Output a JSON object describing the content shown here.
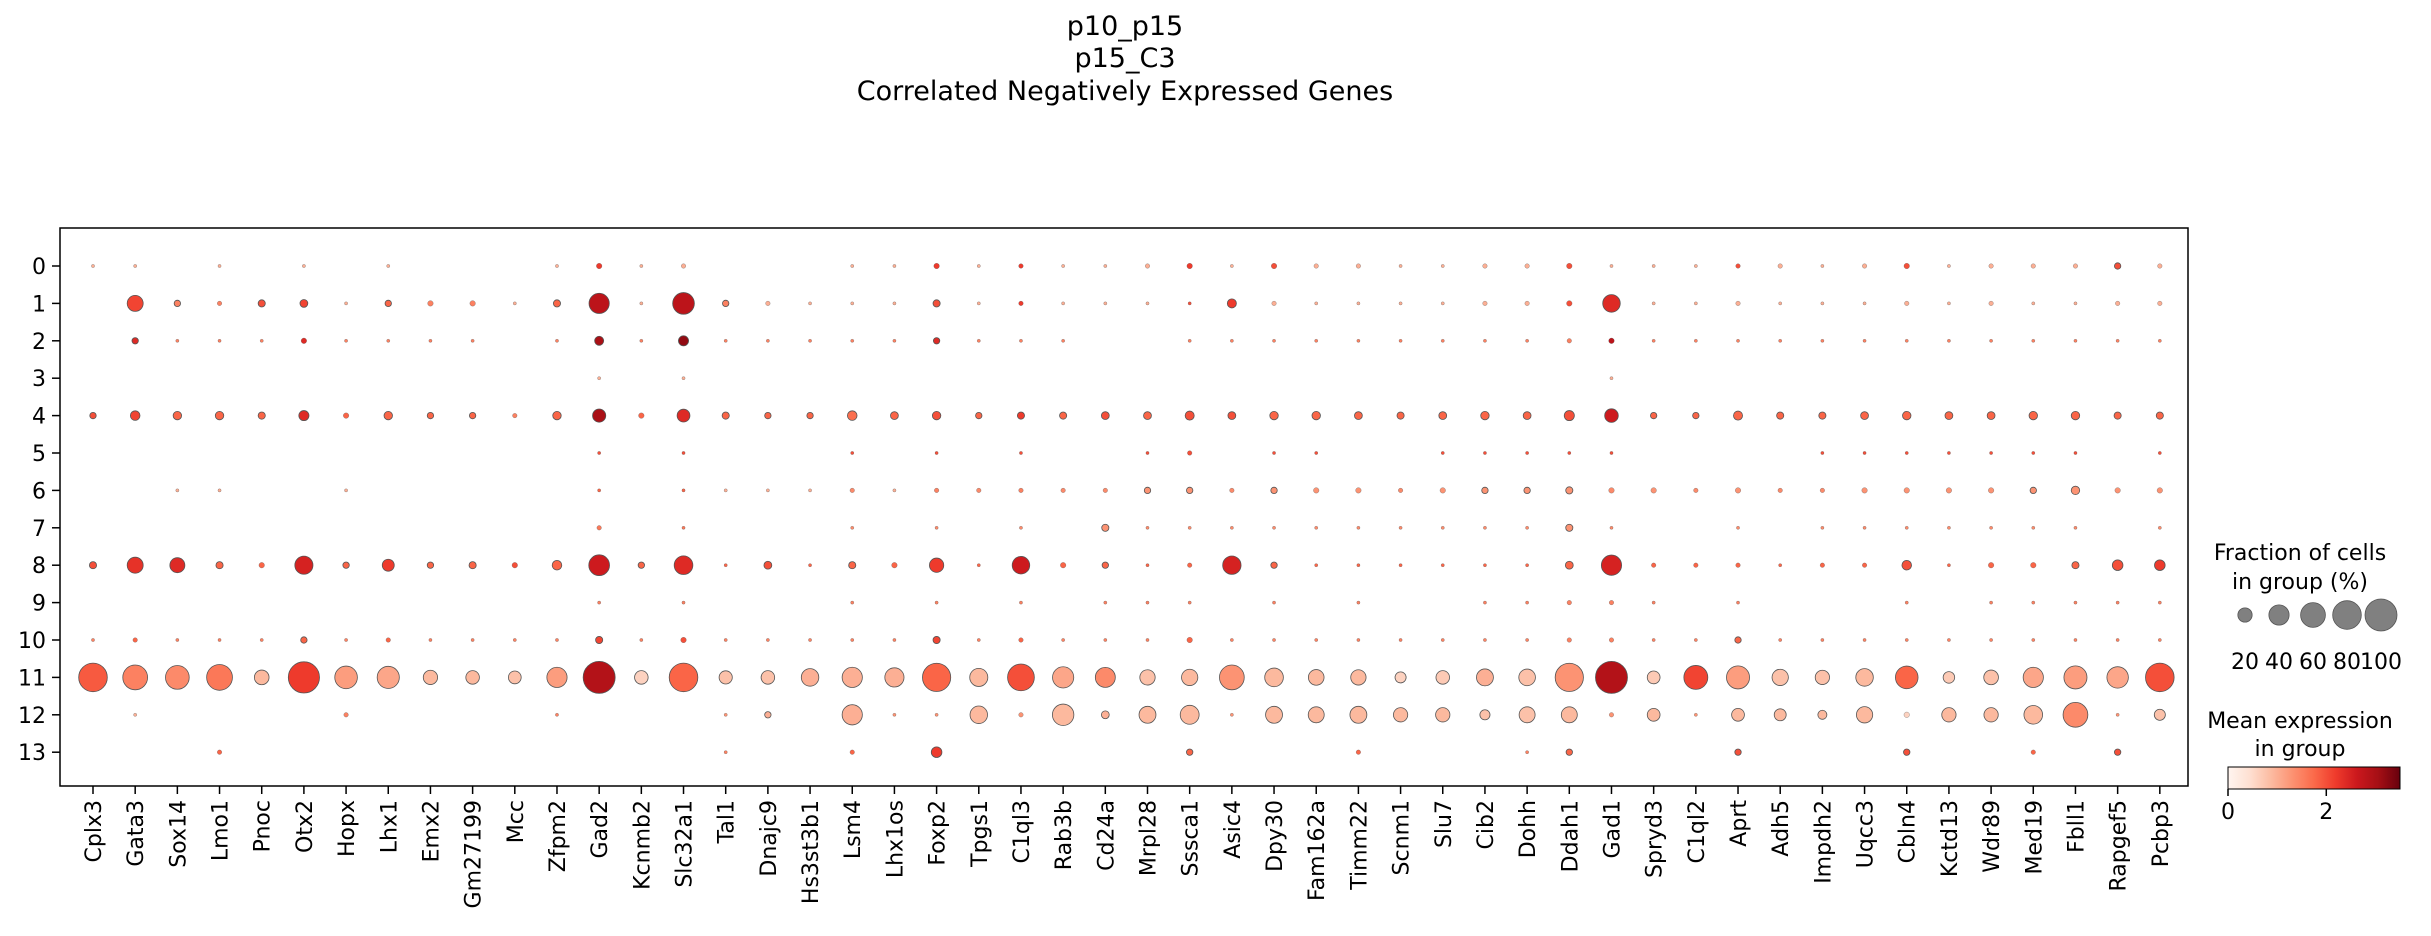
{
  "chart_data": {
    "type": "dotplot",
    "title": [
      "p10_p15",
      "p15_C3",
      "Correlated Negatively Expressed Genes"
    ],
    "genes": [
      "Cplx3",
      "Gata3",
      "Sox14",
      "Lmo1",
      "Pnoc",
      "Otx2",
      "Hopx",
      "Lhx1",
      "Emx2",
      "Gm27199",
      "Mcc",
      "Zfpm2",
      "Gad2",
      "Kcnmb2",
      "Slc32a1",
      "Tal1",
      "Dnajc9",
      "Hs3st3b1",
      "Lsm4",
      "Lhx1os",
      "Foxp2",
      "Tpgs1",
      "C1ql3",
      "Rab3b",
      "Cd24a",
      "Mrpl28",
      "Sssca1",
      "Asic4",
      "Dpy30",
      "Fam162a",
      "Timm22",
      "Scnm1",
      "Slu7",
      "Cib2",
      "Dohh",
      "Ddah1",
      "Gad1",
      "Spryd3",
      "C1ql2",
      "Aprt",
      "Adh5",
      "Impdh2",
      "Uqcc3",
      "Cbln4",
      "Kctd13",
      "Wdr89",
      "Med19",
      "Fbll1",
      "Rapgef5",
      "Pcbp3"
    ],
    "groups": [
      "0",
      "1",
      "2",
      "3",
      "4",
      "5",
      "6",
      "7",
      "8",
      "9",
      "10",
      "11",
      "12",
      "13"
    ],
    "xlabel": "",
    "ylabel": "",
    "fraction_pct": [
      [
        1,
        1,
        0,
        1,
        0,
        1,
        0,
        1,
        0,
        0,
        0,
        1,
        3,
        1,
        2,
        0,
        0,
        0,
        1,
        1,
        3,
        1,
        2,
        1,
        1,
        2,
        3,
        1,
        3,
        2,
        2,
        1,
        1,
        2,
        2,
        3,
        1,
        1,
        1,
        2,
        2,
        1,
        2,
        3,
        1,
        2,
        2,
        2,
        4,
        2
      ],
      [
        0,
        25,
        4,
        2,
        5,
        6,
        1,
        4,
        3,
        3,
        1,
        5,
        40,
        1,
        46,
        4,
        2,
        1,
        1,
        1,
        5,
        1,
        2,
        1,
        1,
        1,
        1,
        8,
        2,
        1,
        1,
        1,
        1,
        2,
        2,
        3,
        30,
        1,
        1,
        2,
        1,
        1,
        1,
        2,
        1,
        2,
        1,
        1,
        2,
        2
      ],
      [
        0,
        4,
        1,
        1,
        1,
        3,
        1,
        1,
        1,
        1,
        0,
        1,
        8,
        1,
        10,
        1,
        1,
        1,
        1,
        1,
        4,
        1,
        1,
        1,
        0,
        0,
        1,
        1,
        1,
        1,
        1,
        1,
        1,
        1,
        1,
        2,
        3,
        1,
        1,
        1,
        1,
        1,
        1,
        1,
        1,
        1,
        1,
        1,
        1,
        1
      ],
      [
        0,
        0,
        0,
        0,
        0,
        0,
        0,
        0,
        0,
        0,
        0,
        0,
        1,
        0,
        1,
        0,
        0,
        0,
        0,
        0,
        0,
        0,
        0,
        0,
        0,
        0,
        0,
        0,
        0,
        0,
        0,
        0,
        0,
        0,
        0,
        0,
        1,
        0,
        0,
        0,
        0,
        0,
        0,
        0,
        0,
        0,
        0,
        0,
        0,
        0
      ],
      [
        4,
        9,
        7,
        7,
        5,
        10,
        3,
        7,
        4,
        4,
        2,
        7,
        17,
        3,
        16,
        5,
        4,
        4,
        9,
        6,
        7,
        4,
        5,
        5,
        6,
        6,
        8,
        6,
        7,
        7,
        6,
        5,
        6,
        7,
        6,
        10,
        18,
        4,
        4,
        8,
        5,
        5,
        6,
        7,
        6,
        6,
        7,
        7,
        5,
        5
      ],
      [
        0,
        0,
        0,
        0,
        0,
        0,
        0,
        0,
        0,
        0,
        0,
        0,
        1,
        0,
        1,
        0,
        0,
        0,
        1,
        0,
        1,
        0,
        1,
        0,
        0,
        1,
        2,
        0,
        1,
        1,
        0,
        0,
        1,
        1,
        1,
        1,
        1,
        0,
        0,
        0,
        0,
        1,
        1,
        1,
        1,
        1,
        1,
        1,
        0,
        1
      ],
      [
        0,
        0,
        1,
        1,
        0,
        0,
        1,
        0,
        0,
        0,
        0,
        0,
        1,
        0,
        1,
        1,
        1,
        1,
        2,
        1,
        2,
        2,
        2,
        2,
        2,
        4,
        4,
        2,
        4,
        3,
        3,
        2,
        3,
        4,
        4,
        5,
        3,
        3,
        2,
        3,
        2,
        2,
        3,
        3,
        3,
        3,
        4,
        7,
        3,
        3
      ],
      [
        0,
        0,
        0,
        0,
        0,
        0,
        0,
        0,
        0,
        0,
        0,
        0,
        2,
        0,
        1,
        0,
        0,
        0,
        1,
        0,
        1,
        0,
        1,
        0,
        5,
        1,
        1,
        1,
        1,
        1,
        1,
        1,
        1,
        1,
        1,
        5,
        1,
        0,
        0,
        1,
        0,
        1,
        1,
        1,
        1,
        1,
        1,
        1,
        0,
        1
      ],
      [
        5,
        25,
        22,
        5,
        3,
        32,
        4,
        14,
        4,
        5,
        3,
        9,
        42,
        4,
        34,
        1,
        6,
        1,
        5,
        3,
        20,
        1,
        30,
        3,
        4,
        1,
        2,
        33,
        4,
        1,
        1,
        1,
        1,
        1,
        1,
        6,
        40,
        2,
        2,
        2,
        1,
        2,
        2,
        9,
        1,
        3,
        3,
        5,
        11,
        11
      ],
      [
        0,
        0,
        0,
        0,
        0,
        0,
        0,
        0,
        0,
        0,
        0,
        0,
        1,
        0,
        1,
        0,
        0,
        0,
        1,
        0,
        1,
        0,
        1,
        0,
        1,
        1,
        1,
        0,
        1,
        0,
        1,
        0,
        0,
        1,
        1,
        2,
        2,
        1,
        0,
        1,
        0,
        0,
        0,
        1,
        0,
        1,
        1,
        1,
        1,
        1
      ],
      [
        1,
        2,
        1,
        1,
        1,
        4,
        1,
        2,
        1,
        1,
        1,
        1,
        5,
        1,
        3,
        1,
        1,
        1,
        1,
        1,
        5,
        1,
        2,
        1,
        1,
        1,
        3,
        1,
        1,
        1,
        1,
        1,
        1,
        1,
        1,
        2,
        2,
        1,
        1,
        4,
        1,
        1,
        1,
        1,
        1,
        1,
        1,
        1,
        1,
        1
      ],
      [
        80,
        60,
        55,
        65,
        21,
        95,
        50,
        48,
        20,
        18,
        16,
        40,
        100,
        18,
        80,
        17,
        18,
        30,
        40,
        36,
        78,
        32,
        70,
        44,
        39,
        23,
        26,
        60,
        34,
        24,
        23,
        12,
        18,
        28,
        27,
        78,
        100,
        16,
        56,
        52,
        26,
        20,
        30,
        50,
        13,
        21,
        40,
        52,
        45,
        80
      ],
      [
        0,
        1,
        0,
        0,
        0,
        0,
        2,
        0,
        0,
        0,
        0,
        1,
        0,
        0,
        0,
        1,
        4,
        0,
        40,
        1,
        1,
        30,
        2,
        45,
        6,
        28,
        35,
        1,
        28,
        25,
        28,
        20,
        20,
        10,
        25,
        25,
        2,
        16,
        1,
        16,
        14,
        8,
        26,
        3,
        20,
        20,
        34,
        60,
        1,
        12
      ],
      [
        0,
        0,
        0,
        2,
        0,
        0,
        0,
        0,
        0,
        0,
        0,
        0,
        0,
        0,
        0,
        1,
        0,
        0,
        2,
        0,
        11,
        0,
        0,
        0,
        0,
        0,
        4,
        0,
        0,
        0,
        2,
        0,
        0,
        0,
        1,
        4,
        0,
        0,
        0,
        4,
        0,
        0,
        0,
        4,
        0,
        0,
        2,
        0,
        4,
        0
      ]
    ],
    "mean_expression": [
      [
        1,
        1,
        1,
        1,
        1,
        1,
        1,
        1,
        1,
        1,
        1,
        1,
        2.2,
        1,
        1,
        1,
        1,
        1,
        1,
        1,
        2.2,
        1,
        2.2,
        1,
        1,
        1,
        2.2,
        1,
        2,
        1,
        1,
        1,
        1,
        1,
        1,
        2,
        1,
        1,
        1,
        2,
        1,
        1,
        1,
        2,
        1,
        1,
        1,
        1,
        2,
        1
      ],
      [
        0.5,
        2.1,
        1.5,
        1.5,
        2,
        2.1,
        1,
        1.8,
        1.5,
        1.5,
        1,
        1.8,
        2.8,
        1,
        2.8,
        1.5,
        1,
        1,
        1,
        1,
        2,
        1,
        2.2,
        1,
        1,
        1,
        2,
        2.2,
        1,
        1,
        1,
        1,
        1,
        1,
        1,
        2,
        2.4,
        1,
        1,
        1,
        1,
        1,
        1,
        1,
        1,
        1,
        1,
        1,
        1,
        1
      ],
      [
        0.5,
        2.4,
        1.5,
        1.5,
        1.5,
        2.4,
        1.5,
        1.5,
        1.5,
        1.5,
        1,
        1.5,
        3.0,
        1.5,
        3.2,
        1.5,
        1.5,
        1.5,
        1.5,
        1.5,
        2.4,
        1.5,
        1.5,
        1.5,
        1,
        1,
        1.5,
        1.5,
        1.5,
        1.5,
        1.5,
        1.5,
        1.5,
        1.5,
        1.5,
        1.5,
        2.8,
        1.5,
        1.5,
        1.5,
        1.5,
        1.5,
        1.5,
        1.5,
        1.5,
        1.5,
        1.5,
        1.5,
        1.5,
        1.5
      ],
      [
        0,
        0,
        0,
        0,
        0,
        0,
        0,
        0,
        0,
        0,
        0,
        0,
        1,
        0,
        1,
        0,
        0,
        0,
        0,
        0,
        0,
        0,
        0,
        0,
        0,
        0,
        0,
        0,
        0,
        0,
        0,
        0,
        0,
        0,
        0,
        0,
        1,
        0,
        0,
        0,
        0,
        0,
        0,
        0,
        0,
        0,
        0,
        0,
        0,
        0
      ],
      [
        2,
        2.1,
        1.8,
        1.8,
        1.8,
        2.4,
        1.8,
        1.8,
        1.8,
        1.8,
        1.5,
        1.8,
        3.0,
        1.8,
        2.4,
        1.8,
        1.8,
        1.8,
        1.7,
        1.8,
        2,
        1.8,
        2.2,
        1.8,
        2,
        1.8,
        2,
        2,
        1.8,
        1.8,
        1.8,
        1.8,
        1.8,
        1.8,
        1.8,
        2,
        2.6,
        1.8,
        1.8,
        1.8,
        1.8,
        1.8,
        1.8,
        1.8,
        1.8,
        1.8,
        1.8,
        1.8,
        1.8,
        1.8
      ],
      [
        0,
        0,
        0,
        0,
        0,
        0,
        0,
        0,
        0,
        0,
        0,
        0,
        2,
        0,
        2,
        0,
        0,
        0,
        2,
        0,
        2,
        0,
        2,
        0,
        0,
        2,
        2,
        0,
        2,
        2,
        0,
        0,
        2,
        2,
        2,
        2,
        2,
        0,
        0,
        0,
        0,
        2,
        2,
        2,
        2,
        2,
        2,
        2,
        0,
        2
      ],
      [
        0,
        0,
        1,
        1,
        0,
        0,
        1,
        0,
        0,
        0,
        0,
        0,
        1.8,
        0,
        1.8,
        1,
        1,
        1,
        1.4,
        1,
        1.5,
        1.4,
        1.5,
        1.4,
        1.4,
        1.3,
        1.3,
        1.4,
        1.3,
        1.3,
        1.3,
        1.4,
        1.3,
        1.3,
        1.3,
        1.3,
        1.4,
        1.3,
        1.4,
        1.3,
        1.4,
        1.4,
        1.3,
        1.3,
        1.3,
        1.3,
        1.3,
        1.3,
        1.3,
        1.3
      ],
      [
        0,
        0,
        0,
        0,
        0,
        0,
        0,
        0,
        0,
        0,
        0,
        0,
        1.6,
        0,
        1.6,
        0,
        0,
        0,
        1.4,
        0,
        1.4,
        0,
        1.4,
        0,
        1.3,
        1.4,
        1.4,
        1.4,
        1.4,
        1.4,
        1.4,
        1.4,
        1.4,
        1.4,
        1.4,
        1.3,
        1.4,
        0,
        0,
        1.4,
        0,
        1.4,
        1.4,
        1.4,
        1.4,
        1.4,
        1.4,
        1.4,
        0,
        1.4
      ],
      [
        2,
        2.3,
        2.4,
        1.8,
        1.8,
        2.5,
        1.8,
        2.2,
        1.8,
        1.8,
        2,
        1.8,
        2.6,
        1.8,
        2.4,
        1.8,
        2,
        1.8,
        1.8,
        1.8,
        2.2,
        1.8,
        2.6,
        1.8,
        1.8,
        1.8,
        1.8,
        2.5,
        1.8,
        1.8,
        1.8,
        1.8,
        1.8,
        1.8,
        1.8,
        1.8,
        2.5,
        1.8,
        1.8,
        1.8,
        1.8,
        1.8,
        1.8,
        2,
        1.8,
        1.8,
        1.8,
        1.8,
        2,
        2.2
      ],
      [
        0,
        0,
        0,
        0,
        0,
        0,
        0,
        0,
        0,
        0,
        0,
        0,
        1.5,
        0,
        1.5,
        0,
        0,
        0,
        1.5,
        0,
        1.5,
        0,
        1.5,
        0,
        1.5,
        1.5,
        1.5,
        0,
        1.5,
        0,
        1.5,
        0,
        0,
        1.5,
        1.5,
        1.5,
        1.5,
        1.5,
        0,
        1.5,
        0,
        0,
        0,
        1.5,
        0,
        1.5,
        1.5,
        1.5,
        1.5,
        1.5
      ],
      [
        1.5,
        1.8,
        1.5,
        1.5,
        1.5,
        1.8,
        1.5,
        1.8,
        1.5,
        1.5,
        1.5,
        1.5,
        2.1,
        1.5,
        2,
        1.5,
        1.5,
        1.5,
        1.5,
        1.5,
        2.1,
        1.5,
        1.8,
        1.5,
        1.5,
        1.5,
        1.8,
        1.5,
        1.5,
        1.5,
        1.5,
        1.5,
        1.5,
        1.5,
        1.5,
        1.5,
        1.5,
        1.5,
        1.5,
        1.8,
        1.5,
        1.5,
        1.5,
        1.5,
        1.5,
        1.5,
        1.5,
        1.5,
        1.5,
        1.5
      ],
      [
        1.9,
        1.5,
        1.4,
        1.6,
        0.9,
        2.2,
        1.2,
        1.1,
        0.9,
        0.9,
        0.8,
        1.2,
        2.9,
        0.6,
        1.8,
        0.8,
        0.8,
        1.0,
        1.0,
        1.0,
        1.8,
        0.9,
        2.0,
        1.1,
        1.4,
        0.8,
        0.9,
        1.3,
        0.9,
        0.9,
        0.9,
        0.6,
        0.7,
        1.0,
        0.8,
        1.3,
        2.9,
        0.7,
        2.1,
        1.2,
        0.8,
        0.8,
        0.9,
        1.8,
        0.7,
        0.8,
        1.1,
        1.2,
        1.1,
        2.0
      ],
      [
        0,
        1,
        0,
        0,
        0,
        0,
        1.5,
        0,
        0,
        0,
        0,
        1.5,
        0,
        0,
        0,
        1.3,
        1.0,
        0,
        1.0,
        1.3,
        1.3,
        0.9,
        1.3,
        0.9,
        1.0,
        0.9,
        0.9,
        1.3,
        0.9,
        0.9,
        0.9,
        0.9,
        0.9,
        0.8,
        0.8,
        0.9,
        1.3,
        0.9,
        1.3,
        0.9,
        0.9,
        0.9,
        0.9,
        0.6,
        0.9,
        0.9,
        0.9,
        1.4,
        1.3,
        0.8
      ],
      [
        0,
        0,
        0,
        1.8,
        0,
        0,
        0,
        0,
        0,
        0,
        0,
        0,
        0,
        0,
        0,
        1.5,
        0,
        0,
        1.8,
        0,
        2.2,
        0,
        0,
        0,
        0,
        0,
        1.8,
        0,
        0,
        0,
        1.8,
        0,
        0,
        0,
        1.5,
        1.8,
        0,
        0,
        0,
        2,
        0,
        0,
        0,
        2,
        0,
        0,
        1.8,
        0,
        2,
        0
      ]
    ],
    "size_legend": {
      "title": [
        "Fraction of cells",
        "in group (%)"
      ],
      "values": [
        20,
        40,
        60,
        80,
        100
      ],
      "labels": [
        "20",
        "40",
        "60",
        "80",
        "100"
      ]
    },
    "color_legend": {
      "title": [
        "Mean expression",
        "in group"
      ],
      "range": [
        0,
        3.5
      ],
      "ticks": [
        "0",
        "2"
      ],
      "tick_values": [
        0,
        2
      ],
      "colormap": "Reds"
    }
  }
}
